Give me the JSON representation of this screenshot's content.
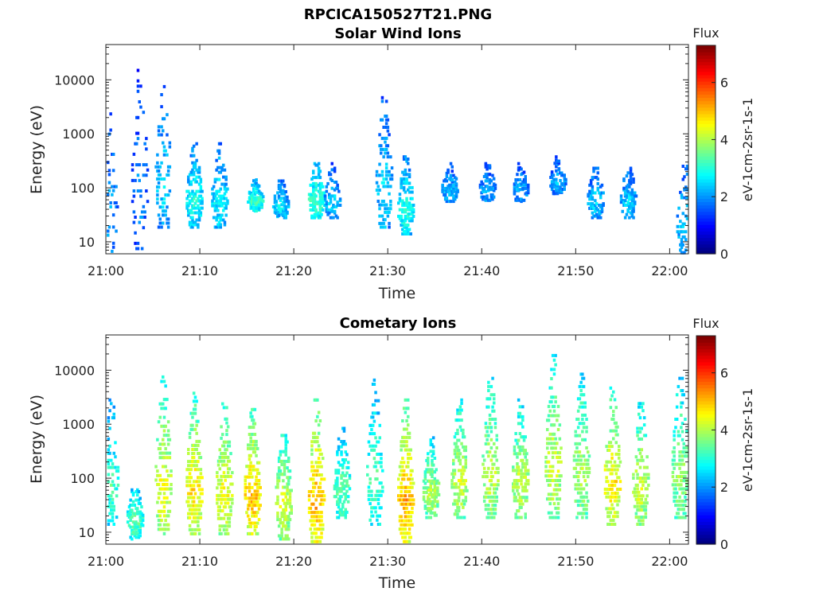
{
  "figure_title": "RPCICA150527T21.PNG",
  "chart_data": [
    {
      "type": "heatmap",
      "title": "Solar Wind Ions",
      "xlabel": "Time",
      "ylabel": "Energy (eV)",
      "x_ticks": [
        "21:00",
        "21:10",
        "21:20",
        "21:30",
        "21:40",
        "21:50",
        "22:00"
      ],
      "x_range": [
        "21:00",
        "22:02"
      ],
      "y_scale": "log",
      "y_ticks": [
        "10",
        "100",
        "1000",
        "10000"
      ],
      "y_range": [
        6,
        45000
      ],
      "colorbar": {
        "title": "Flux",
        "label": "eV-1cm-2sr-1s-1",
        "ticks": [
          "0",
          "2",
          "4",
          "6"
        ],
        "range": [
          0,
          7.3
        ],
        "colormap": "jet"
      },
      "bursts": [
        {
          "t": 0.3,
          "e_lo": 6,
          "e_hi": 2500,
          "level": 2.2,
          "density": 0.25
        },
        {
          "t": 3.5,
          "e_lo": 8,
          "e_hi": 20000,
          "level": 2.0,
          "density": 0.25
        },
        {
          "t": 6.0,
          "e_lo": 20,
          "e_hi": 8000,
          "level": 2.6,
          "density": 0.3
        },
        {
          "t": 9.3,
          "e_lo": 20,
          "e_hi": 700,
          "level": 3.0,
          "density": 0.5
        },
        {
          "t": 12.0,
          "e_lo": 20,
          "e_hi": 700,
          "level": 2.8,
          "density": 0.4
        },
        {
          "t": 15.8,
          "e_lo": 40,
          "e_hi": 150,
          "level": 3.3,
          "density": 0.4
        },
        {
          "t": 18.5,
          "e_lo": 30,
          "e_hi": 150,
          "level": 2.7,
          "density": 0.35
        },
        {
          "t": 22.3,
          "e_lo": 30,
          "e_hi": 300,
          "level": 3.4,
          "density": 0.45
        },
        {
          "t": 24.0,
          "e_lo": 30,
          "e_hi": 300,
          "level": 2.5,
          "density": 0.25
        },
        {
          "t": 29.5,
          "e_lo": 20,
          "e_hi": 5000,
          "level": 2.6,
          "density": 0.35
        },
        {
          "t": 31.8,
          "e_lo": 15,
          "e_hi": 400,
          "level": 3.1,
          "density": 0.45
        },
        {
          "t": 36.5,
          "e_lo": 60,
          "e_hi": 300,
          "level": 2.4,
          "density": 0.3
        },
        {
          "t": 40.5,
          "e_lo": 60,
          "e_hi": 300,
          "level": 2.3,
          "density": 0.25
        },
        {
          "t": 44.0,
          "e_lo": 60,
          "e_hi": 300,
          "level": 2.3,
          "density": 0.25
        },
        {
          "t": 48.0,
          "e_lo": 80,
          "e_hi": 400,
          "level": 2.3,
          "density": 0.3
        },
        {
          "t": 52.0,
          "e_lo": 30,
          "e_hi": 300,
          "level": 2.5,
          "density": 0.25
        },
        {
          "t": 55.5,
          "e_lo": 30,
          "e_hi": 300,
          "level": 2.5,
          "density": 0.3
        },
        {
          "t": 61.5,
          "e_lo": 6,
          "e_hi": 300,
          "level": 2.6,
          "density": 0.3
        }
      ]
    },
    {
      "type": "heatmap",
      "title": "Cometary Ions",
      "xlabel": "Time",
      "ylabel": "Energy (eV)",
      "x_ticks": [
        "21:00",
        "21:10",
        "21:20",
        "21:30",
        "21:40",
        "21:50",
        "22:00"
      ],
      "x_range": [
        "21:00",
        "22:02"
      ],
      "y_scale": "log",
      "y_ticks": [
        "10",
        "100",
        "1000",
        "10000"
      ],
      "y_range": [
        6,
        45000
      ],
      "colorbar": {
        "title": "Flux",
        "label": "eV-1cm-2sr-1s-1",
        "ticks": [
          "0",
          "2",
          "4",
          "6"
        ],
        "range": [
          0,
          7.3
        ],
        "colormap": "jet"
      },
      "bursts": [
        {
          "t": 0.5,
          "e_lo": 15,
          "e_hi": 3000,
          "level": 3.3,
          "density": 0.4
        },
        {
          "t": 3.0,
          "e_lo": 8,
          "e_hi": 100,
          "level": 3.5,
          "density": 0.4
        },
        {
          "t": 6.0,
          "e_lo": 10,
          "e_hi": 8000,
          "level": 4.6,
          "density": 0.55
        },
        {
          "t": 9.3,
          "e_lo": 10,
          "e_hi": 4000,
          "level": 4.9,
          "density": 0.6
        },
        {
          "t": 12.5,
          "e_lo": 10,
          "e_hi": 3000,
          "level": 4.7,
          "density": 0.55
        },
        {
          "t": 15.5,
          "e_lo": 10,
          "e_hi": 2000,
          "level": 5.2,
          "density": 0.6
        },
        {
          "t": 18.8,
          "e_lo": 8,
          "e_hi": 1000,
          "level": 4.4,
          "density": 0.5
        },
        {
          "t": 22.3,
          "e_lo": 6,
          "e_hi": 3000,
          "level": 5.3,
          "density": 0.65
        },
        {
          "t": 25.0,
          "e_lo": 20,
          "e_hi": 1000,
          "level": 3.6,
          "density": 0.4
        },
        {
          "t": 28.5,
          "e_lo": 15,
          "e_hi": 7000,
          "level": 3.5,
          "density": 0.4
        },
        {
          "t": 31.8,
          "e_lo": 6,
          "e_hi": 3000,
          "level": 5.3,
          "density": 0.65
        },
        {
          "t": 34.5,
          "e_lo": 20,
          "e_hi": 600,
          "level": 4.2,
          "density": 0.5
        },
        {
          "t": 37.5,
          "e_lo": 20,
          "e_hi": 3000,
          "level": 4.4,
          "density": 0.55
        },
        {
          "t": 40.8,
          "e_lo": 20,
          "e_hi": 9000,
          "level": 4.3,
          "density": 0.55
        },
        {
          "t": 44.0,
          "e_lo": 20,
          "e_hi": 3000,
          "level": 4.3,
          "density": 0.55
        },
        {
          "t": 47.5,
          "e_lo": 20,
          "e_hi": 20000,
          "level": 4.4,
          "density": 0.55
        },
        {
          "t": 50.5,
          "e_lo": 20,
          "e_hi": 9000,
          "level": 4.2,
          "density": 0.5
        },
        {
          "t": 53.8,
          "e_lo": 15,
          "e_hi": 5000,
          "level": 4.9,
          "density": 0.55
        },
        {
          "t": 56.8,
          "e_lo": 15,
          "e_hi": 3000,
          "level": 4.4,
          "density": 0.5
        },
        {
          "t": 61.0,
          "e_lo": 20,
          "e_hi": 9000,
          "level": 4.0,
          "density": 0.5
        }
      ]
    }
  ]
}
